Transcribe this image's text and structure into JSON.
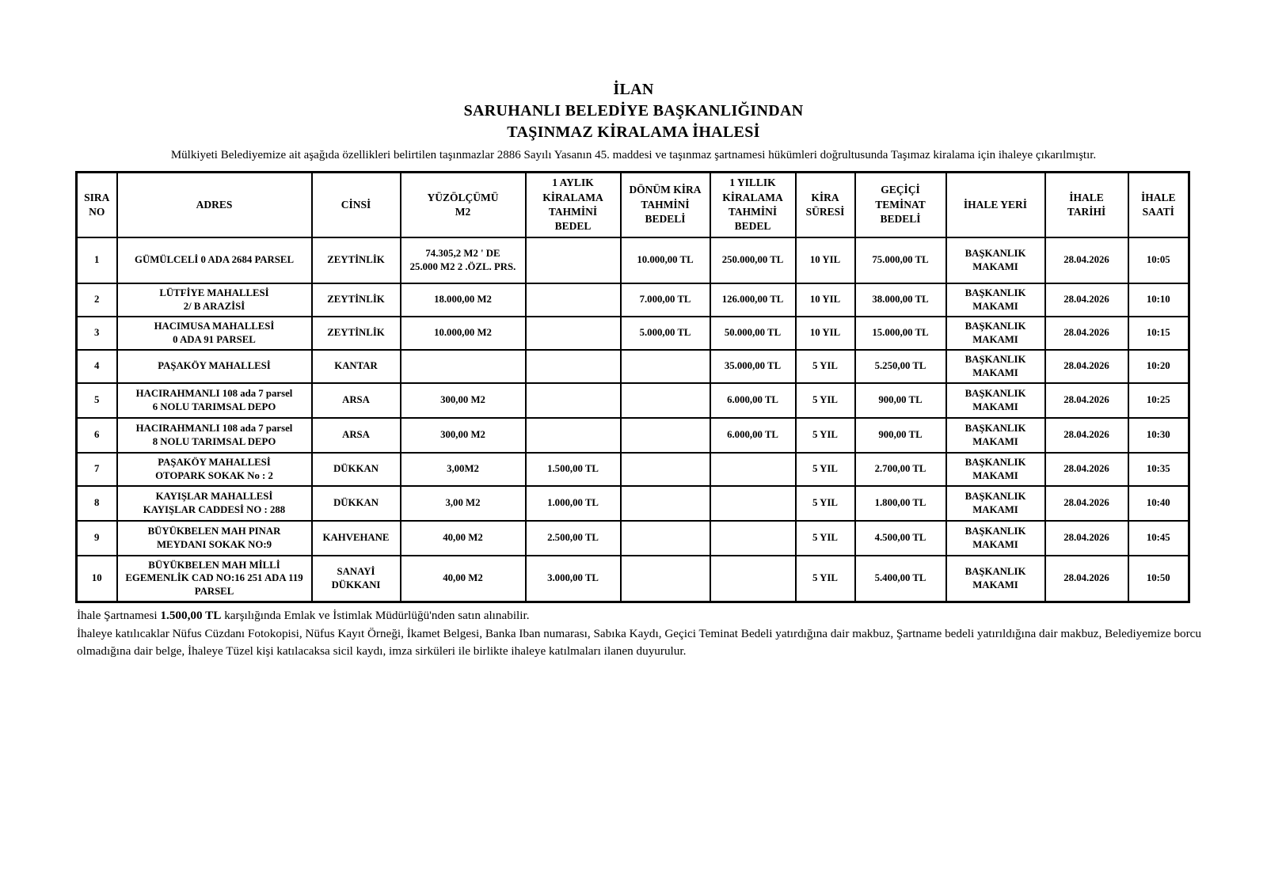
{
  "title": {
    "line1": "İLAN",
    "line2": "SARUHANLI BELEDİYE BAŞKANLIĞINDAN",
    "line3": "TAŞINMAZ KİRALAMA İHALESİ"
  },
  "intro": "Mülkiyeti Belediyemize ait aşağıda özellikleri belirtilen taşınmazlar 2886 Sayılı Yasanın 45. maddesi ve taşınmaz şartnamesi hükümleri doğrultusunda Taşımaz kiralama için ihaleye çıkarılmıştır.",
  "table": {
    "headers": [
      "SIRA\nNO",
      "ADRES",
      "CİNSİ",
      "YÜZÖLÇÜMÜ\nM2",
      "1 AYLIK\nKİRALAMA\nTAHMİNİ\nBEDEL",
      "DÖNÜM KİRA\nTAHMİNİ\nBEDELİ",
      "1 YILLIK\nKİRALAMA\nTAHMİNİ\nBEDEL",
      "KİRA\nSÜRESİ",
      "GEÇİÇİ\nTEMİNAT\nBEDELİ",
      "İHALE YERİ",
      "İHALE\nTARİHİ",
      "İHALE\nSAATİ"
    ],
    "rows": [
      [
        "1",
        "GÜMÜLCELİ 0 ADA 2684 PARSEL",
        "ZEYTİNLİK",
        "74.305,2 M2 ' DE\n25.000 M2 2 .ÖZL. PRS.",
        "",
        "10.000,00 TL",
        "250.000,00 TL",
        "10 YIL",
        "75.000,00 TL",
        "BAŞKANLIK\nMAKAMI",
        "28.04.2026",
        "10:05"
      ],
      [
        "2",
        "LÜTFİYE MAHALLESİ\n2/ B ARAZİSİ",
        "ZEYTİNLİK",
        "18.000,00 M2",
        "",
        "7.000,00 TL",
        "126.000,00 TL",
        "10 YIL",
        "38.000,00 TL",
        "BAŞKANLIK\nMAKAMI",
        "28.04.2026",
        "10:10"
      ],
      [
        "3",
        "HACIMUSA MAHALLESİ\n0 ADA 91 PARSEL",
        "ZEYTİNLİK",
        "10.000,00 M2",
        "",
        "5.000,00 TL",
        "50.000,00 TL",
        "10 YIL",
        "15.000,00 TL",
        "BAŞKANLIK\nMAKAMI",
        "28.04.2026",
        "10:15"
      ],
      [
        "4",
        "PAŞAKÖY MAHALLESİ",
        "KANTAR",
        "",
        "",
        "",
        "35.000,00 TL",
        "5 YIL",
        "5.250,00 TL",
        "BAŞKANLIK\nMAKAMI",
        "28.04.2026",
        "10:20"
      ],
      [
        "5",
        "HACIRAHMANLI 108 ada 7 parsel\n6 NOLU TARIMSAL DEPO",
        "ARSA",
        "300,00 M2",
        "",
        "",
        "6.000,00 TL",
        "5 YIL",
        "900,00 TL",
        "BAŞKANLIK\nMAKAMI",
        "28.04.2026",
        "10:25"
      ],
      [
        "6",
        "HACIRAHMANLI 108 ada 7 parsel\n8 NOLU TARIMSAL DEPO",
        "ARSA",
        "300,00 M2",
        "",
        "",
        "6.000,00 TL",
        "5 YIL",
        "900,00 TL",
        "BAŞKANLIK\nMAKAMI",
        "28.04.2026",
        "10:30"
      ],
      [
        "7",
        "PAŞAKÖY MAHALLESİ\nOTOPARK SOKAK No : 2",
        "DÜKKAN",
        "3,00M2",
        "1.500,00 TL",
        "",
        "",
        "5 YIL",
        "2.700,00 TL",
        "BAŞKANLIK\nMAKAMI",
        "28.04.2026",
        "10:35"
      ],
      [
        "8",
        "KAYIŞLAR MAHALLESİ\nKAYIŞLAR CADDESİ NO : 288",
        "DÜKKAN",
        "3,00 M2",
        "1.000,00 TL",
        "",
        "",
        "5 YIL",
        "1.800,00 TL",
        "BAŞKANLIK\nMAKAMI",
        "28.04.2026",
        "10:40"
      ],
      [
        "9",
        "BÜYÜKBELEN MAH PINAR\nMEYDANI SOKAK NO:9",
        "KAHVEHANE",
        "40,00 M2",
        "2.500,00 TL",
        "",
        "",
        "5 YIL",
        "4.500,00 TL",
        "BAŞKANLIK\nMAKAMI",
        "28.04.2026",
        "10:45"
      ],
      [
        "10",
        "BÜYÜKBELEN MAH MİLLİ\nEGEMENLİK CAD NO:16 251 ADA 119\nPARSEL",
        "SANAYİ\nDÜKKANI",
        "40,00 M2",
        "3.000,00 TL",
        "",
        "",
        "5 YIL",
        "5.400,00 TL",
        "BAŞKANLIK\nMAKAMI",
        "28.04.2026",
        "10:50"
      ]
    ]
  },
  "footer": {
    "line1_prefix": "İhale Şartnamesi ",
    "line1_bold": "1.500,00 TL",
    "line1_suffix": " karşılığında Emlak ve İstimlak Müdürlüğü'nden satın alınabilir.",
    "line2": "İhaleye katılıcaklar Nüfus Cüzdanı Fotokopisi, Nüfus Kayıt Örneği, İkamet Belgesi, Banka Iban numarası, Sabıka Kaydı,  Geçici Teminat Bedeli yatırdığına dair makbuz, Şartname bedeli yatırıldığına dair makbuz,  Belediyemize borcu olmadığına dair belge, İhaleye Tüzel kişi katılacaksa sicil kaydı, imza sirküleri ile birlikte ihaleye katılmaları ilanen duyurulur."
  }
}
